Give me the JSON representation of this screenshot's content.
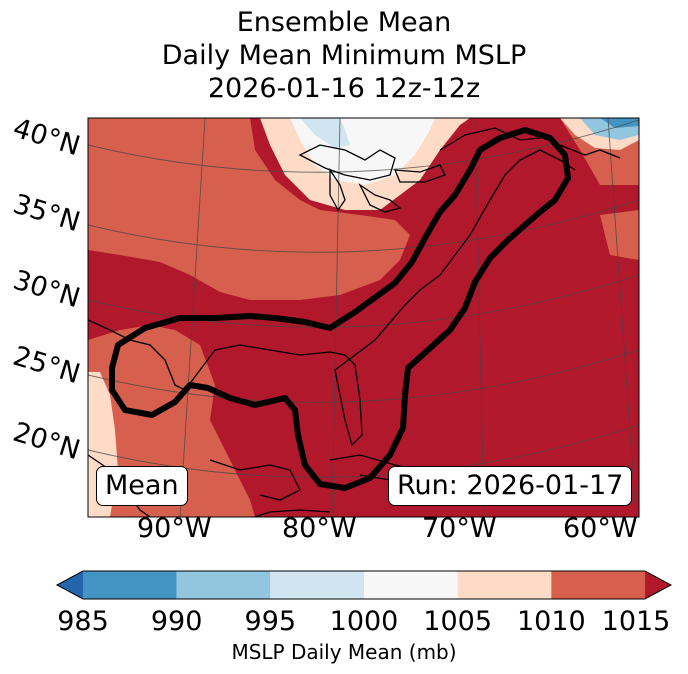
{
  "title": {
    "line1": "Ensemble Mean",
    "line2": "Daily Mean Minimum MSLP",
    "line3": "2026-01-16 12z-12z"
  },
  "map": {
    "lat_labels": [
      "40°N",
      "35°N",
      "30°N",
      "25°N",
      "20°N"
    ],
    "lon_labels": [
      "90°W",
      "80°W",
      "70°W",
      "60°W"
    ],
    "left_badge": "Mean",
    "right_badge": "Run: 2026-01-17"
  },
  "colorbar": {
    "ticks": [
      "985",
      "990",
      "995",
      "1000",
      "1005",
      "1010",
      "1015"
    ],
    "label": "MSLP Daily Mean (mb)",
    "colors": [
      "#2166ac",
      "#4393c3",
      "#92c5de",
      "#d1e5f0",
      "#f7f7f7",
      "#fddbc7",
      "#d6604d",
      "#b2182b"
    ]
  }
}
